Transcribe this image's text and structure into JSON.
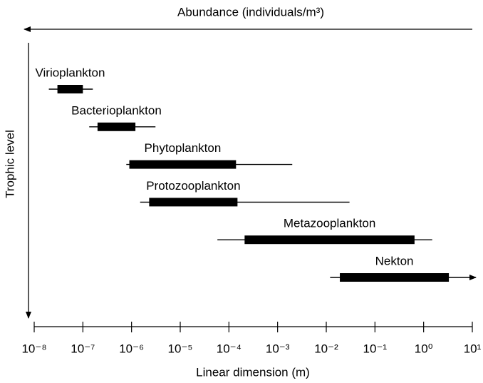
{
  "chart_data": {
    "type": "range",
    "title": "Abundance (individuals/m³)",
    "x_label": "Linear dimension (m)",
    "y_label": "Trophic level",
    "x_log": true,
    "color": "#000000",
    "xlim": [
      1e-08,
      10
    ],
    "xticks": [
      {
        "value": 1e-08,
        "label": "10⁻⁸"
      },
      {
        "value": 1e-07,
        "label": "10⁻⁷"
      },
      {
        "value": 1e-06,
        "label": "10⁻⁶"
      },
      {
        "value": 1e-05,
        "label": "10⁻⁵"
      },
      {
        "value": 0.0001,
        "label": "10⁻⁴"
      },
      {
        "value": 0.001,
        "label": "10⁻³"
      },
      {
        "value": 0.01,
        "label": "10⁻²"
      },
      {
        "value": 0.1,
        "label": "10⁻¹"
      },
      {
        "value": 1,
        "label": "10⁰"
      },
      {
        "value": 10,
        "label": "10¹"
      }
    ],
    "series": [
      {
        "name": "Virioplankton",
        "range": [
          2e-08,
          1.6e-07
        ],
        "typical": [
          3e-08,
          1e-07
        ]
      },
      {
        "name": "Bacterioplankton",
        "range": [
          1.35e-07,
          3.1e-06
        ],
        "typical": [
          2e-07,
          1.2e-06
        ]
      },
      {
        "name": "Phytoplankton",
        "range": [
          7.8e-07,
          0.002
        ],
        "typical": [
          9e-07,
          0.00014
        ]
      },
      {
        "name": "Protozooplankton",
        "range": [
          1.5e-06,
          0.03
        ],
        "typical": [
          2.3e-06,
          0.00015
        ]
      },
      {
        "name": "Metazooplankton",
        "range": [
          5.8e-05,
          1.5
        ],
        "typical": [
          0.00021,
          0.65
        ]
      },
      {
        "name": "Nekton",
        "range": [
          0.012,
          10
        ],
        "typical": [
          0.019,
          3.3
        ],
        "arrow": "right"
      }
    ]
  }
}
